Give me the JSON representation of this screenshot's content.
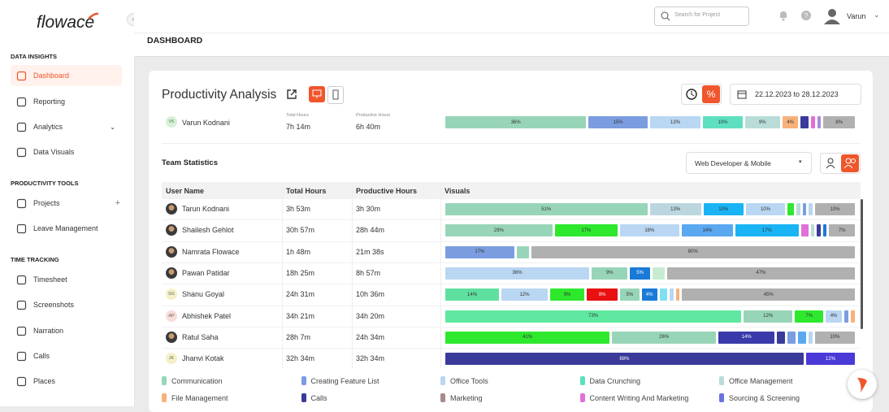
{
  "header": {
    "search_placeholder": "Search for Project",
    "user": "Varun"
  },
  "sidebar": {
    "logo": "flowace",
    "sections": [
      {
        "title": "DATA INSIGHTS",
        "items": [
          "Dashboard",
          "Reporting",
          "Analytics",
          "Data Visuals"
        ]
      },
      {
        "title": "PRODUCTIVITY TOOLS",
        "items": [
          "Projects",
          "Leave Management"
        ]
      },
      {
        "title": "TIME TRACKING",
        "items": [
          "Timesheet",
          "Screenshots",
          "Narration",
          "Calls",
          "Places"
        ]
      }
    ]
  },
  "page_title": "DASHBOARD",
  "card": {
    "title": "Productivity Analysis",
    "date_range": "22.12.2023 to 28.12.2023",
    "user": {
      "initials": "VK",
      "name": "Varun Kodnani",
      "total_hours_label": "Total Hours",
      "total_hours": "7h 14m",
      "productive_hours_label": "Productive Hours",
      "productive_hours": "6h 40m",
      "segments": [
        {
          "color": "#98d5b8",
          "value": 36,
          "label": "36%"
        },
        {
          "color": "#7b9de0",
          "value": 15,
          "label": "15%"
        },
        {
          "color": "#b9d6f2",
          "value": 13,
          "label": "13%"
        },
        {
          "color": "#5ee0c0",
          "value": 10,
          "label": "10%"
        },
        {
          "color": "#b9dcd8",
          "value": 9,
          "label": "9%"
        },
        {
          "color": "#f6b27a",
          "value": 4,
          "label": "4%"
        },
        {
          "color": "#3a3a9a",
          "value": 2
        },
        {
          "color": "#e070d8",
          "value": 1
        },
        {
          "color": "#a88ad8",
          "value": 1
        },
        {
          "color": "#b0b0b0",
          "value": 8,
          "label": "8%"
        }
      ]
    }
  },
  "team": {
    "title": "Team Statistics",
    "filter": "Web Developer & Mobile",
    "columns": [
      "User Name",
      "Total Hours",
      "Productive Hours",
      "Visuals"
    ],
    "rows": [
      {
        "name": "Tarun Kodnani",
        "total": "3h 53m",
        "productive": "3h 30m",
        "segments": [
          {
            "color": "#98d5b8",
            "value": 51,
            "label": "51%"
          },
          {
            "color": "#bcd6e0",
            "value": 13,
            "label": "13%"
          },
          {
            "color": "#1ab4f5",
            "value": 10,
            "label": "10%"
          },
          {
            "color": "#b9d6f2",
            "value": 10,
            "label": "10%"
          },
          {
            "color": "#2ee82e",
            "value": 1.5
          },
          {
            "color": "#b9dcd8",
            "value": 1
          },
          {
            "color": "#7b9de0",
            "value": 1
          },
          {
            "color": "#b9d6f2",
            "value": 1
          },
          {
            "color": "#b0b0b0",
            "value": 10,
            "label": "10%"
          }
        ]
      },
      {
        "name": "Shailesh Gehlot",
        "total": "30h 57m",
        "productive": "28h 44m",
        "segments": [
          {
            "color": "#98d5b8",
            "value": 29,
            "label": "29%"
          },
          {
            "color": "#2ee82e",
            "value": 17,
            "label": "17%"
          },
          {
            "color": "#b9d6f2",
            "value": 16,
            "label": "16%"
          },
          {
            "color": "#5aa8f0",
            "value": 14,
            "label": "14%"
          },
          {
            "color": "#1ab4f5",
            "value": 17,
            "label": "17%"
          },
          {
            "color": "#e070d8",
            "value": 2
          },
          {
            "color": "#b9dcd8",
            "value": 1
          },
          {
            "color": "#3a3a9a",
            "value": 1
          },
          {
            "color": "#1a7ad8",
            "value": 1
          },
          {
            "color": "#b0b0b0",
            "value": 7,
            "label": "7%"
          }
        ]
      },
      {
        "name": "Namrata Flowace",
        "total": "1h 48m",
        "productive": "21m 38s",
        "segments": [
          {
            "color": "#7b9de0",
            "value": 17,
            "label": "17%"
          },
          {
            "color": "#98d5b8",
            "value": 3
          },
          {
            "color": "#b0b0b0",
            "value": 80,
            "label": "80%"
          }
        ]
      },
      {
        "name": "Pawan Patidar",
        "total": "18h 25m",
        "productive": "8h 57m",
        "segments": [
          {
            "color": "#b9d6f2",
            "value": 36,
            "label": "36%"
          },
          {
            "color": "#98d5b8",
            "value": 9,
            "label": "9%"
          },
          {
            "color": "#1a7ad8",
            "value": 5,
            "label": "5%"
          },
          {
            "color": "#c8ecd0",
            "value": 3
          },
          {
            "color": "#b0b0b0",
            "value": 47,
            "label": "47%"
          }
        ]
      },
      {
        "initials": "SG",
        "name": "Shanu Goyal",
        "total": "24h 31m",
        "productive": "10h 36m",
        "segments": [
          {
            "color": "#5ee0a0",
            "value": 14,
            "label": "14%"
          },
          {
            "color": "#b9d6f2",
            "value": 12,
            "label": "12%"
          },
          {
            "color": "#2ee82e",
            "value": 9,
            "label": "9%"
          },
          {
            "color": "#e81010",
            "value": 8,
            "label": "8%"
          },
          {
            "color": "#98d5b8",
            "value": 5,
            "label": "5%"
          },
          {
            "color": "#1a7ad8",
            "value": 4,
            "label": "4%"
          },
          {
            "color": "#7ee0f0",
            "value": 2
          },
          {
            "color": "#b9d6f2",
            "value": 1
          },
          {
            "color": "#f6b27a",
            "value": 1
          },
          {
            "color": "#b0b0b0",
            "value": 45,
            "label": "45%"
          }
        ]
      },
      {
        "initials": "AP",
        "name": "Abhishek Patel",
        "total": "34h 21m",
        "productive": "34h 20m",
        "segments": [
          {
            "color": "#5ee8a0",
            "value": 73,
            "label": "73%"
          },
          {
            "color": "#98d5b8",
            "value": 12,
            "label": "12%"
          },
          {
            "color": "#2ee82e",
            "value": 7,
            "label": "7%"
          },
          {
            "color": "#b9d6f2",
            "value": 4,
            "label": "4%"
          },
          {
            "color": "#7b9de0",
            "value": 1
          },
          {
            "color": "#f6b27a",
            "value": 1
          }
        ]
      },
      {
        "name": "Ratul Saha",
        "total": "28h 7m",
        "productive": "24h 34m",
        "segments": [
          {
            "color": "#2ee82e",
            "value": 41,
            "label": "41%"
          },
          {
            "color": "#98d5b8",
            "value": 26,
            "label": "26%"
          },
          {
            "color": "#3a3aaa",
            "value": 14,
            "label": "14%"
          },
          {
            "color": "#3a3a9a",
            "value": 2
          },
          {
            "color": "#7b9de0",
            "value": 2
          },
          {
            "color": "#5aa8f0",
            "value": 2
          },
          {
            "color": "#b9d6f2",
            "value": 1
          },
          {
            "color": "#b0b0b0",
            "value": 10,
            "label": "10%"
          }
        ]
      },
      {
        "initials": "JK",
        "name": "Jhanvi Kotak",
        "total": "32h 34m",
        "productive": "32h 34m",
        "segments": [
          {
            "color": "#3a3a9a",
            "value": 88,
            "label": "88%"
          },
          {
            "color": "#4a3ad8",
            "value": 12,
            "label": "12%"
          }
        ]
      }
    ]
  },
  "legend": [
    {
      "name": "Communication",
      "color": "#98d5b8"
    },
    {
      "name": "Creating Feature List",
      "color": "#7b9de0"
    },
    {
      "name": "Office Tools",
      "color": "#b9d6f2"
    },
    {
      "name": "Data Crunching",
      "color": "#5ee0c0"
    },
    {
      "name": "Office Management",
      "color": "#b9dcd8"
    },
    {
      "name": "File Management",
      "color": "#f6b27a"
    },
    {
      "name": "Calls",
      "color": "#3a3a9a"
    },
    {
      "name": "Marketing",
      "color": "#a88a8a"
    },
    {
      "name": "Content Writing And Marketing",
      "color": "#e070d8"
    },
    {
      "name": "Sourcing & Screening",
      "color": "#6a72e0"
    }
  ]
}
